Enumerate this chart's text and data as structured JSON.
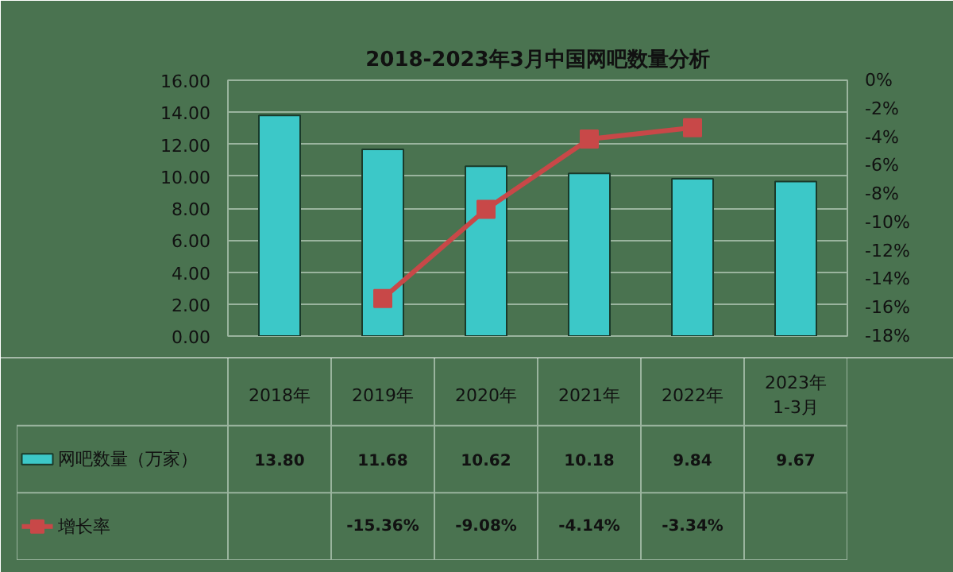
{
  "chart_data": {
    "type": "bar",
    "title": "2018-2023年3月中国网吧数量分析",
    "categories": [
      "2018年",
      "2019年",
      "2020年",
      "2021年",
      "2022年",
      "2023年\n1-3月"
    ],
    "series": [
      {
        "name": "网吧数量（万家）",
        "color": "#3cc8c8",
        "values": [
          13.8,
          11.68,
          10.62,
          10.18,
          9.84,
          9.67
        ],
        "value_labels": [
          "13.80",
          "11.68",
          "10.62",
          "10.18",
          "9.84",
          "9.67"
        ]
      },
      {
        "name": "增长率",
        "type": "line",
        "axis": "y2",
        "color": "#c84848",
        "marker": "square",
        "values": [
          null,
          -15.36,
          -9.08,
          -4.14,
          -3.34,
          null
        ],
        "value_labels": [
          null,
          "-15.36%",
          "-9.08%",
          "-4.14%",
          "-3.34%",
          null
        ]
      }
    ],
    "ylim": [
      0,
      16
    ],
    "yticks": [
      {
        "value": 0,
        "label": "0.00"
      },
      {
        "value": 2,
        "label": "2.00"
      },
      {
        "value": 4,
        "label": "4.00"
      },
      {
        "value": 6,
        "label": "6.00"
      },
      {
        "value": 8,
        "label": "8.00"
      },
      {
        "value": 10,
        "label": "10.00"
      },
      {
        "value": 12,
        "label": "12.00"
      },
      {
        "value": 14,
        "label": "14.00"
      },
      {
        "value": 16,
        "label": "16.00"
      }
    ],
    "y2lim": [
      -18,
      0
    ],
    "y2ticks": [
      {
        "value": -18,
        "label": "-18%"
      },
      {
        "value": -16,
        "label": "-16%"
      },
      {
        "value": -14,
        "label": "-14%"
      },
      {
        "value": -12,
        "label": "-12%"
      },
      {
        "value": -10,
        "label": "-10%"
      },
      {
        "value": -8,
        "label": "-8%"
      },
      {
        "value": -6,
        "label": "-6%"
      },
      {
        "value": -4,
        "label": "-4%"
      },
      {
        "value": -2,
        "label": "-2%"
      },
      {
        "value": 0,
        "label": "0%"
      }
    ],
    "grid": "y",
    "legend": "bottom"
  }
}
